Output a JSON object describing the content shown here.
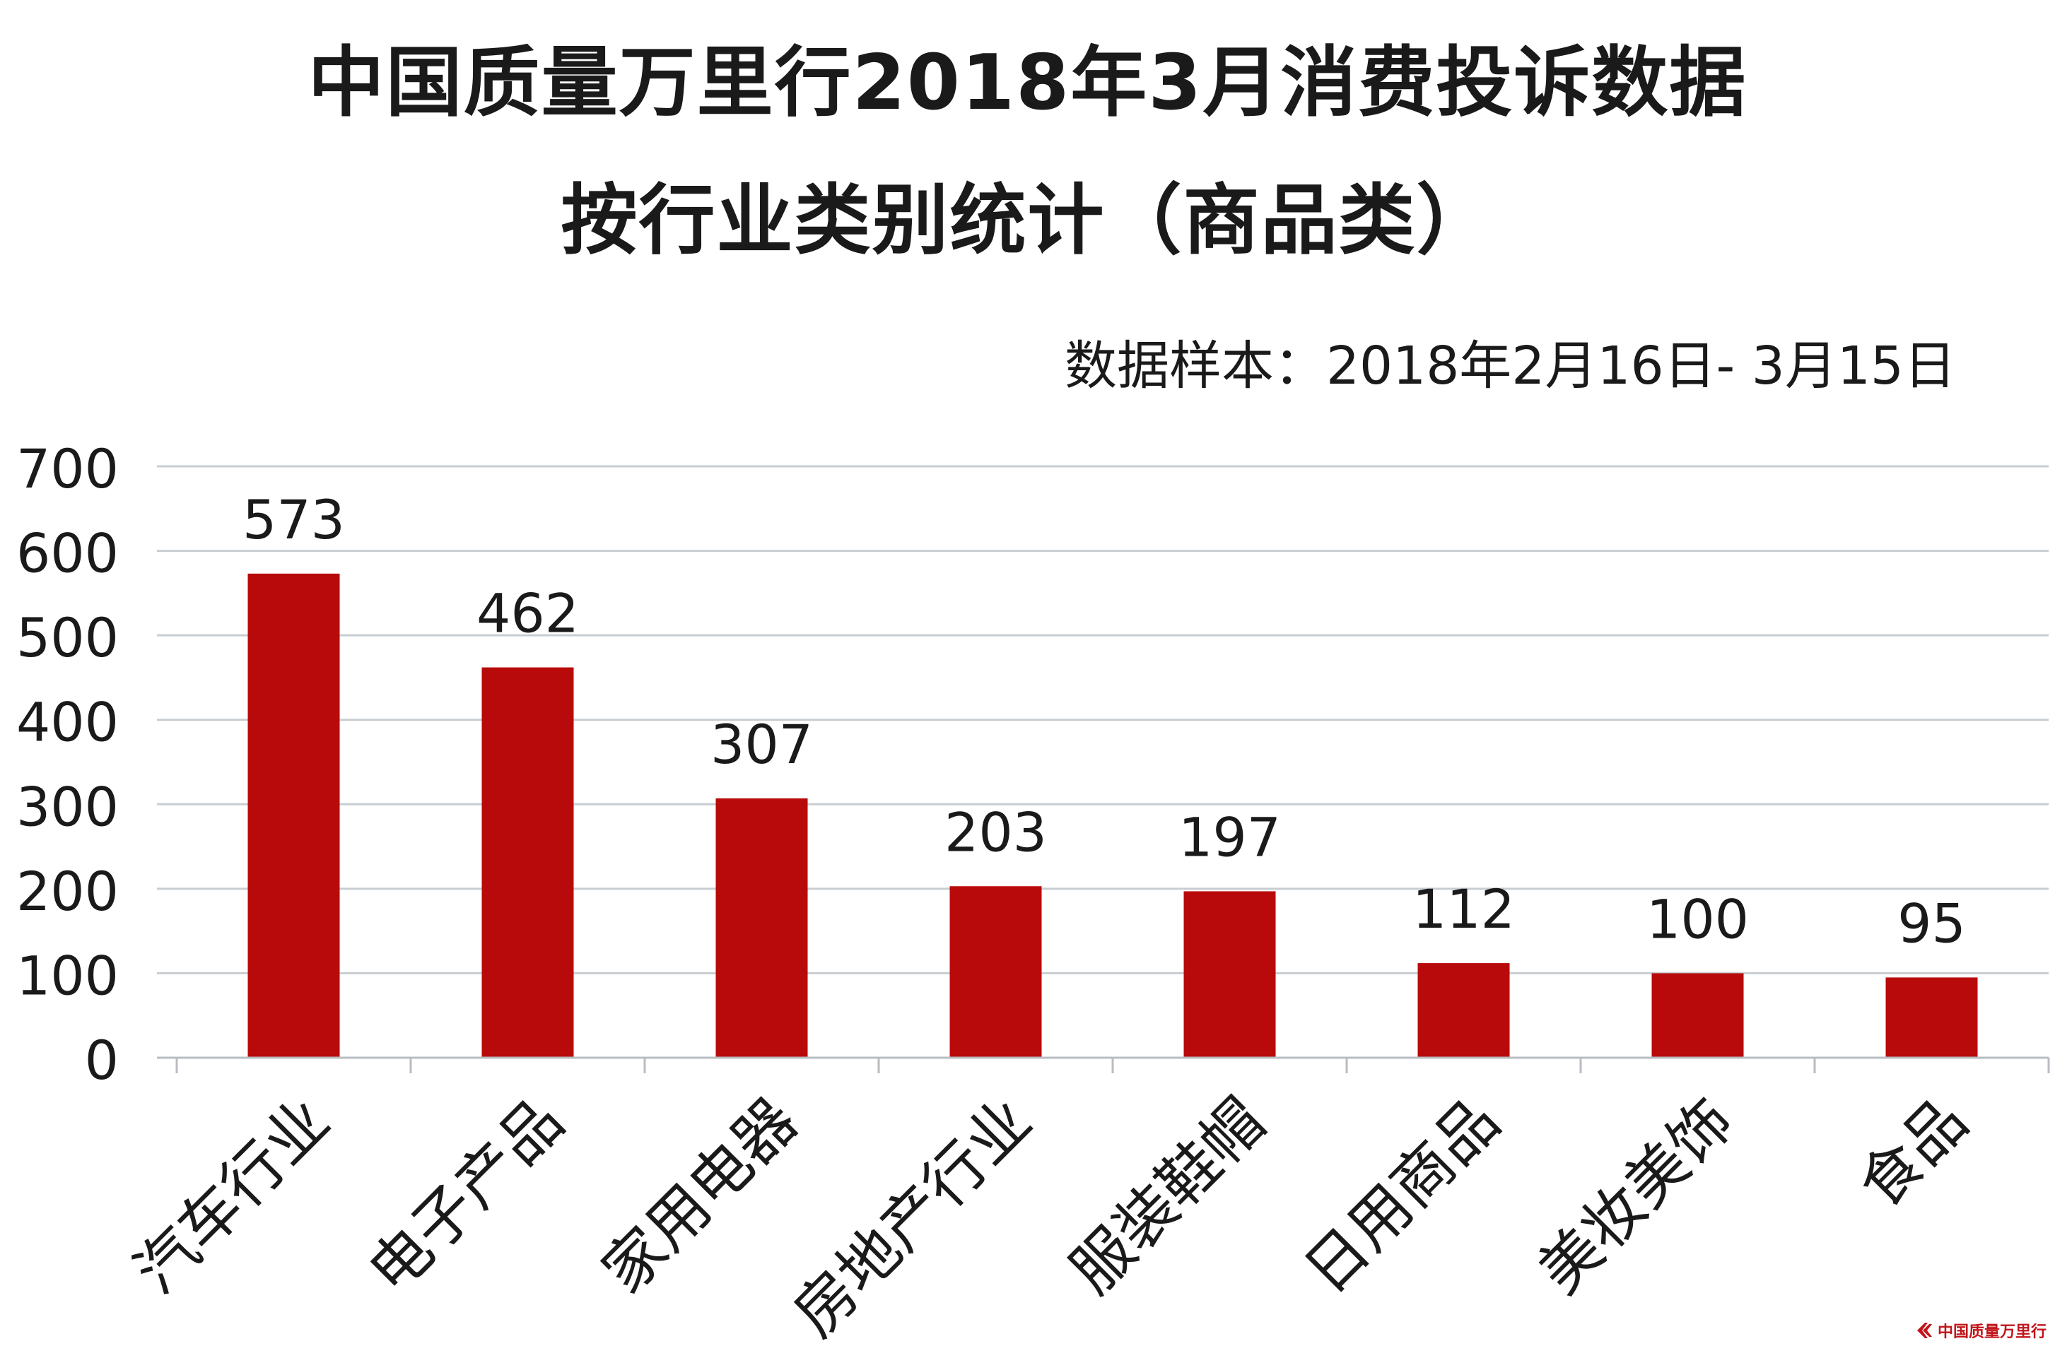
{
  "chart_data": {
    "type": "bar",
    "title": "中国质量万里行2018年3月消费投诉数据",
    "subtitle": "按行业类别统计（商品类）",
    "note": "数据样本：2018年2月16日- 3月15日",
    "categories": [
      "汽车行业",
      "电子产品",
      "家用电器",
      "房地产行业",
      "服装鞋帽",
      "日用商品",
      "美妆美饰",
      "食品"
    ],
    "values": [
      573,
      462,
      307,
      203,
      197,
      112,
      100,
      95
    ],
    "data_labels": [
      "573",
      "462",
      "307",
      "203",
      "197",
      "112",
      "100",
      "95"
    ],
    "ylim": [
      0,
      700
    ],
    "yticks": [
      0,
      100,
      200,
      300,
      400,
      500,
      600,
      700
    ],
    "ytick_labels": [
      "0",
      "100",
      "200",
      "300",
      "400",
      "500",
      "600",
      "700"
    ],
    "xlabel": "",
    "ylabel": "",
    "grid": true,
    "legend": "none",
    "bar_color": "#b80a0a",
    "grid_color": "#c8cdd2"
  },
  "watermark": {
    "text": "中国质量万里行",
    "color": "#c0161b"
  }
}
